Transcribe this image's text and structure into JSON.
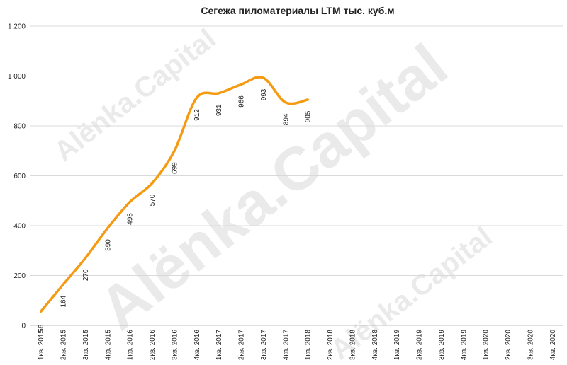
{
  "chart_data": {
    "type": "line",
    "title": "Сегежа пиломатериалы LTM тыс. куб.м",
    "watermark": "Alёnka.Capital",
    "categories": [
      "1кв. 2015",
      "2кв. 2015",
      "3кв. 2015",
      "4кв. 2015",
      "1кв. 2016",
      "2кв. 2016",
      "3кв. 2016",
      "4кв. 2016",
      "1кв. 2017",
      "2кв. 2017",
      "3кв. 2017",
      "4кв. 2017",
      "1кв. 2018",
      "2кв. 2018",
      "3кв. 2018",
      "4кв. 2018",
      "1кв. 2019",
      "2кв. 2019",
      "3кв. 2019",
      "4кв. 2019",
      "1кв. 2020",
      "2кв. 2020",
      "3кв. 2020",
      "4кв. 2020"
    ],
    "values": [
      56,
      164,
      270,
      390,
      495,
      570,
      699,
      912,
      931,
      966,
      993,
      894,
      905,
      null,
      null,
      null,
      null,
      null,
      null,
      null,
      null,
      null,
      null,
      null
    ],
    "color": "#f59b12",
    "ylim": [
      0,
      1200
    ],
    "yticks": [
      0,
      200,
      400,
      600,
      800,
      {
        "value": 1000,
        "label": "1 000"
      },
      {
        "value": 1200,
        "label": "1 200"
      }
    ],
    "grid": true
  }
}
